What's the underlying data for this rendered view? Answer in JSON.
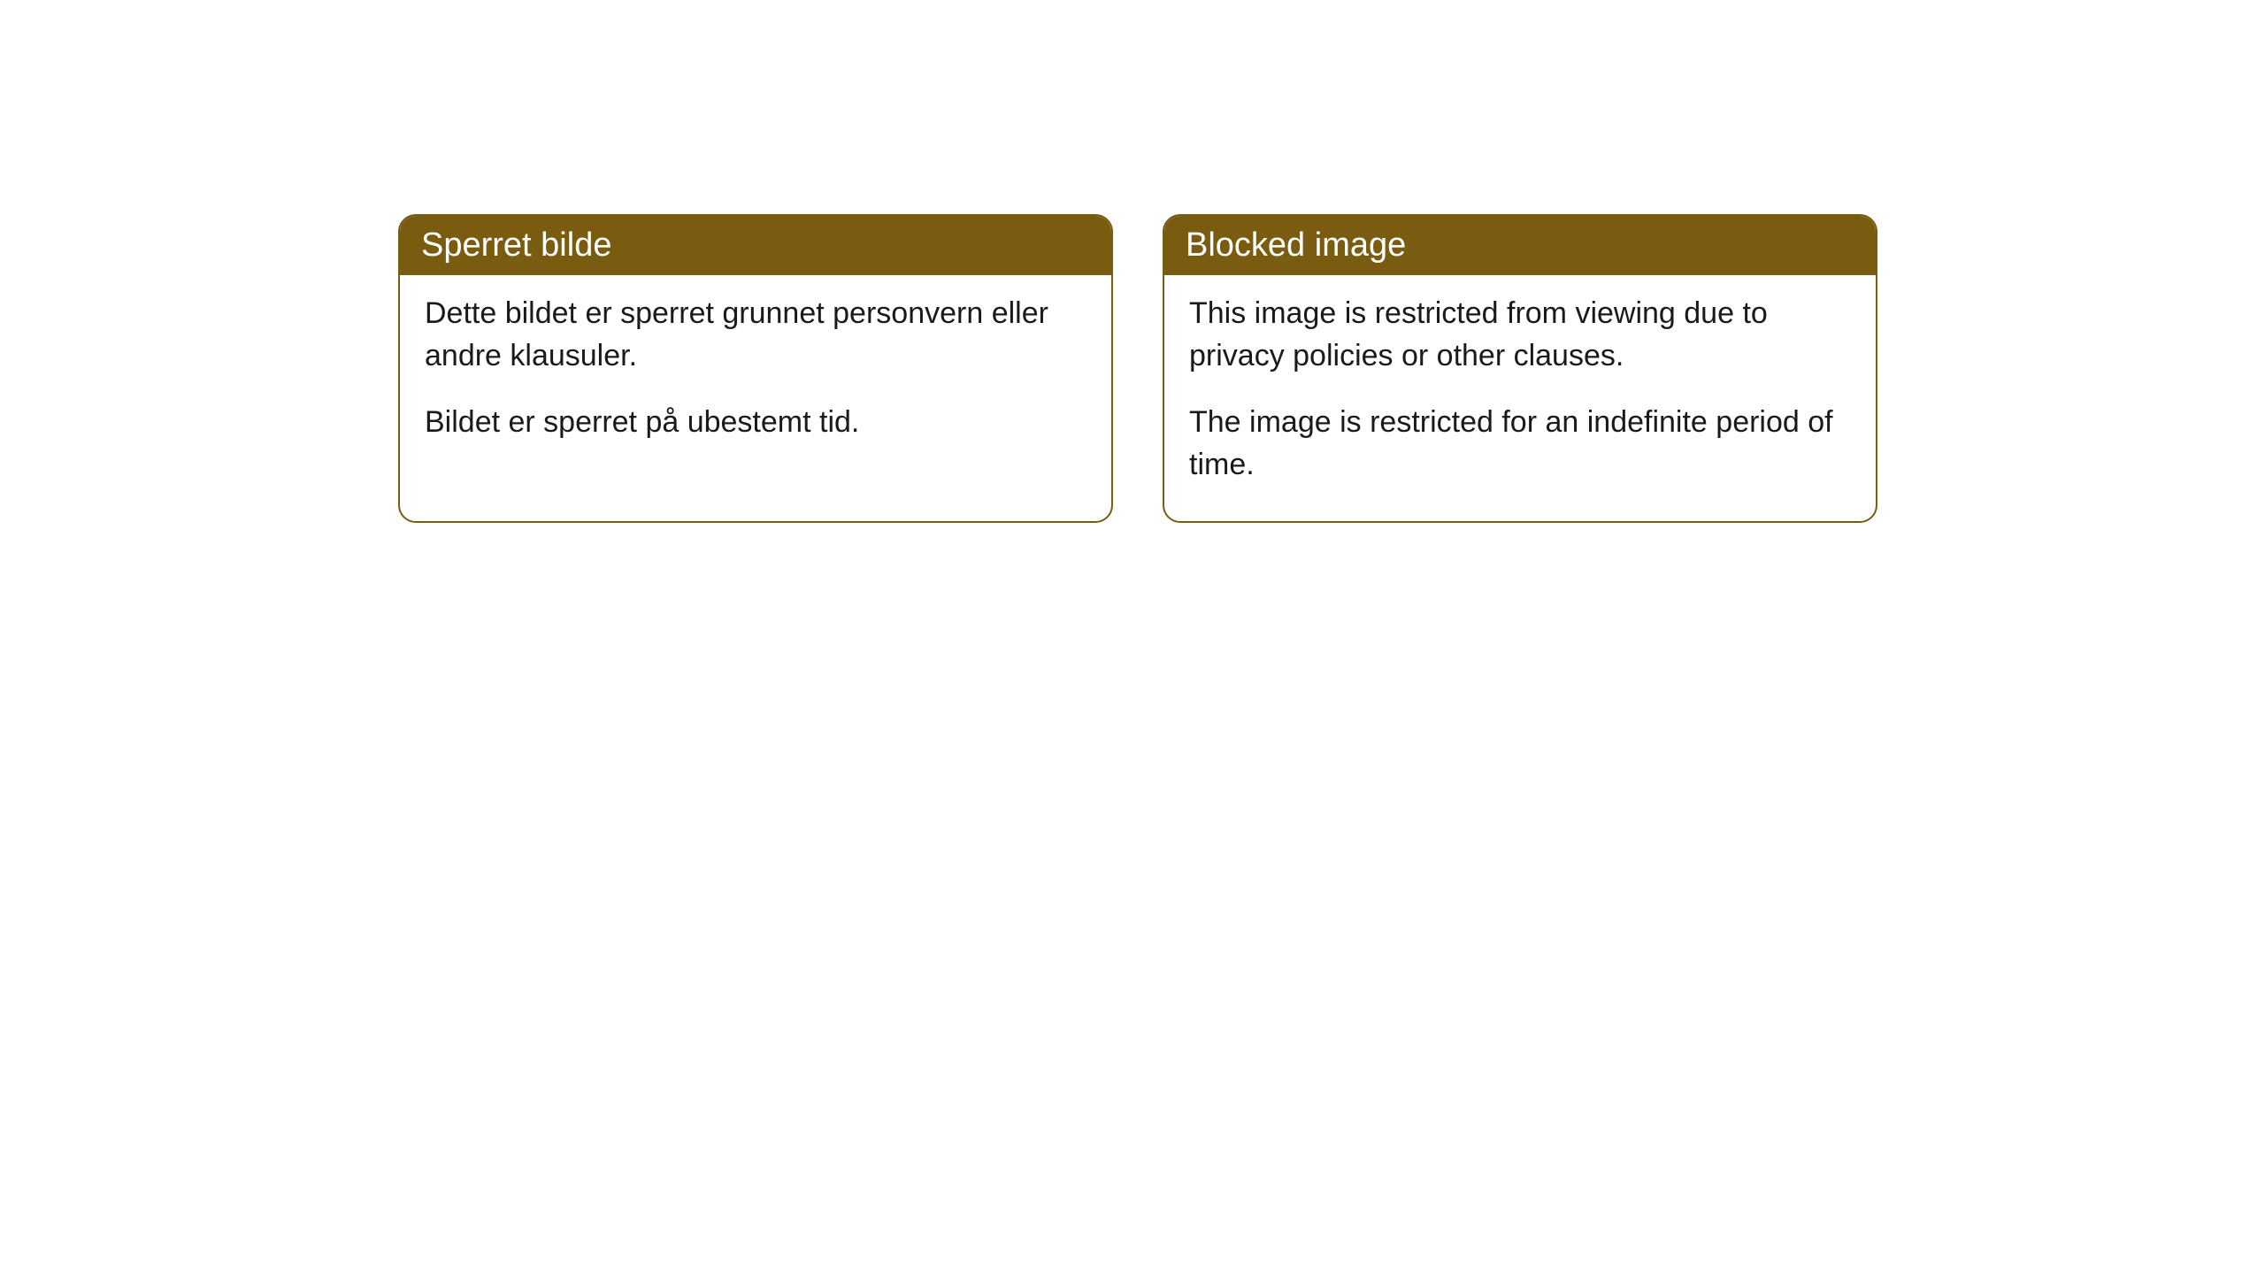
{
  "layout": {
    "background_color": "#ffffff",
    "card_border_color": "#7a5c11",
    "card_header_bg": "#7a5c11",
    "card_header_text_color": "#ffffff",
    "card_body_text_color": "#1a1a1a",
    "border_radius": 20,
    "header_fontsize": 38,
    "body_fontsize": 34
  },
  "cards": {
    "left": {
      "title": "Sperret bilde",
      "paragraph1": "Dette bildet er sperret grunnet personvern eller andre klausuler.",
      "paragraph2": "Bildet er sperret på ubestemt tid."
    },
    "right": {
      "title": "Blocked image",
      "paragraph1": "This image is restricted from viewing due to privacy policies or other clauses.",
      "paragraph2": "The image is restricted for an indefinite period of time."
    }
  }
}
